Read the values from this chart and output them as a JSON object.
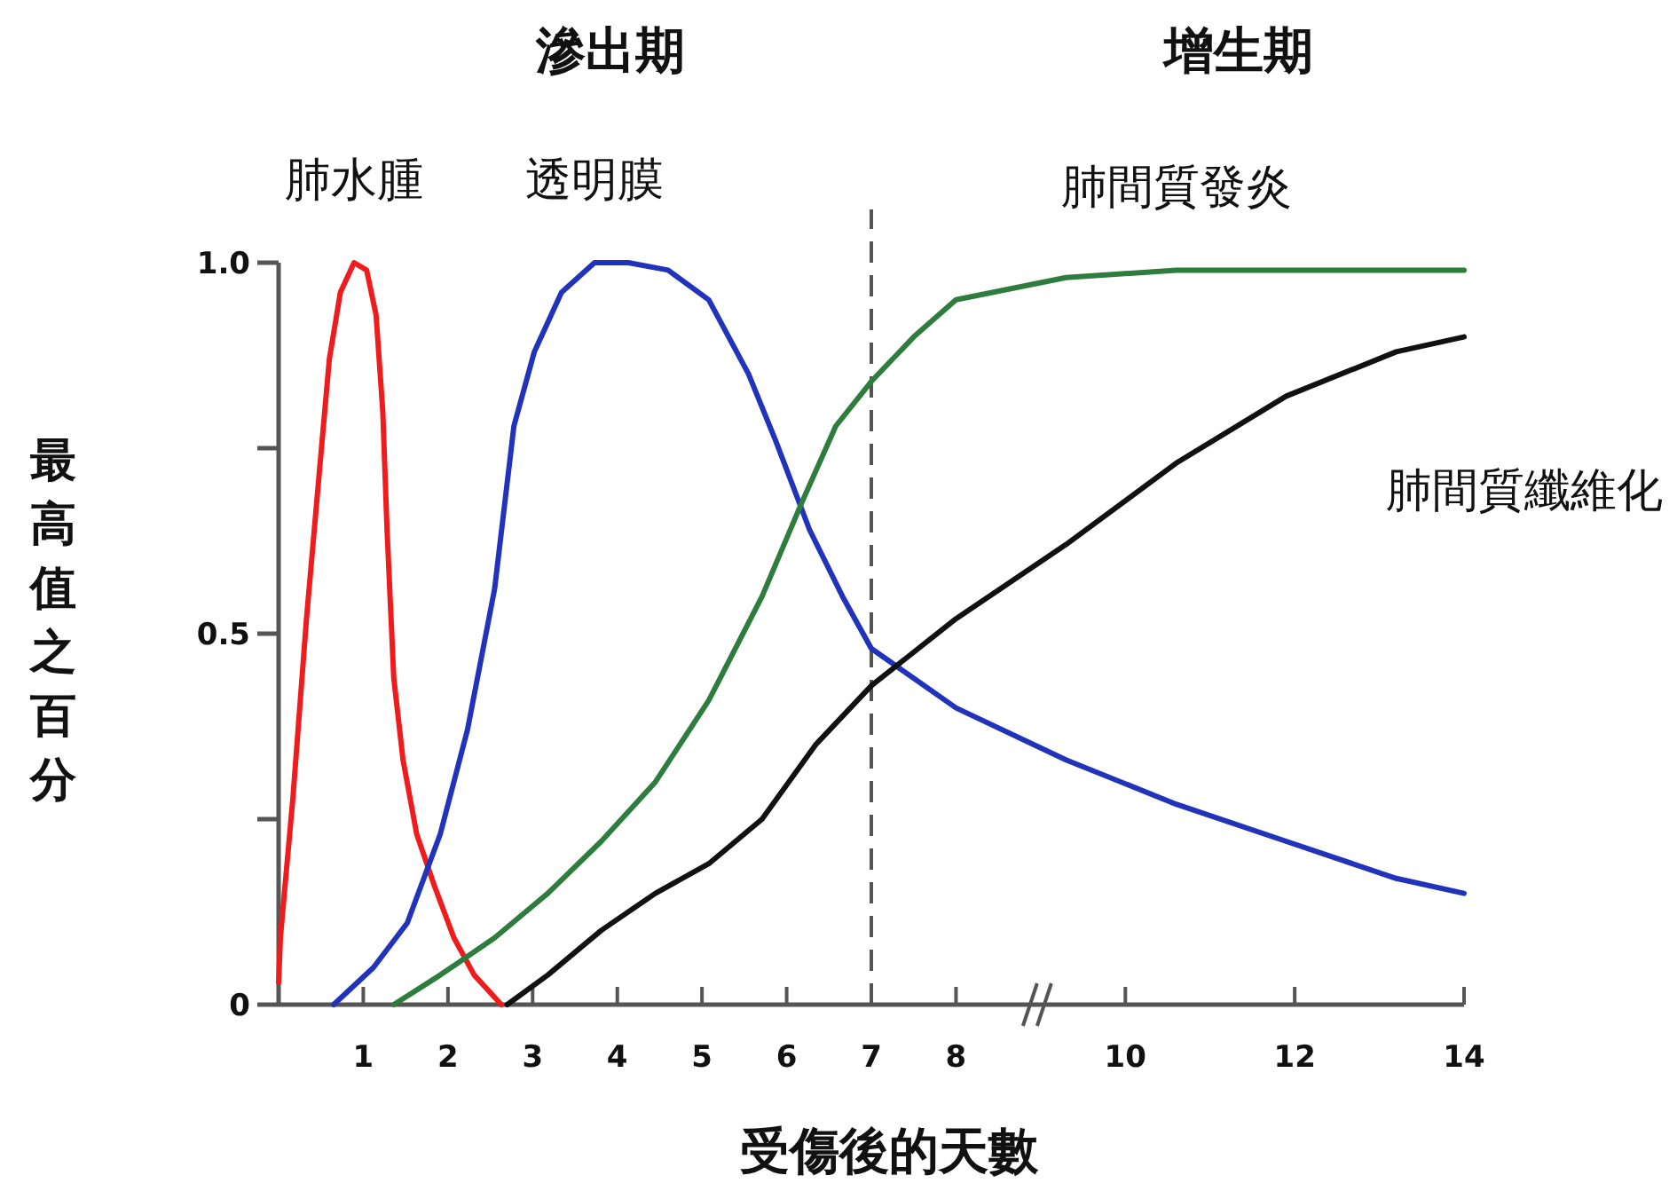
{
  "chart_data": {
    "type": "line",
    "xlabel": "受傷後的天數",
    "ylabel": "最高值之百分",
    "annotations": [
      "滲出期",
      "增生期"
    ],
    "xlim": [
      0,
      14
    ],
    "xticks": [
      1,
      2,
      3,
      4,
      5,
      6,
      7,
      8,
      10,
      12,
      14
    ],
    "ylim": [
      0,
      1
    ],
    "yticks": [
      {
        "value": 0,
        "label": "0"
      },
      {
        "value": 0.25,
        "label": null
      },
      {
        "value": 0.5,
        "label": "0.5"
      },
      {
        "value": 0.75,
        "label": null
      },
      {
        "value": 1,
        "label": "1.0"
      }
    ],
    "ref_lines": [
      {
        "axis": "x",
        "value": 7,
        "label": null,
        "color": "#555555",
        "line_style": "dashed"
      }
    ],
    "series": [
      {
        "name": "肺水腫",
        "color": "#ee1c1c",
        "x": [
          0,
          0.02,
          0.17,
          0.33,
          0.49,
          0.6,
          0.73,
          0.89,
          1.04,
          1.15,
          1.23,
          1.28,
          1.36,
          1.47,
          1.63,
          1.84,
          2.07,
          2.31,
          2.63
        ],
        "values": [
          0.03,
          0.09,
          0.28,
          0.52,
          0.73,
          0.87,
          0.96,
          1.0,
          0.99,
          0.93,
          0.8,
          0.64,
          0.44,
          0.33,
          0.23,
          0.16,
          0.09,
          0.04,
          0
        ]
      },
      {
        "name": "透明膜",
        "color": "#2233bb",
        "x": [
          0.65,
          1.12,
          1.52,
          1.91,
          2.23,
          2.55,
          2.78,
          3.02,
          3.34,
          3.73,
          4.13,
          4.6,
          5.08,
          5.55,
          5.87,
          6.27,
          6.66,
          7,
          8,
          9.3,
          10.6,
          11.9,
          13.2,
          14
        ],
        "values": [
          0,
          0.05,
          0.11,
          0.23,
          0.37,
          0.56,
          0.78,
          0.88,
          0.96,
          1.0,
          1.0,
          0.99,
          0.95,
          0.85,
          0.76,
          0.64,
          0.55,
          0.48,
          0.4,
          0.33,
          0.27,
          0.22,
          0.17,
          0.15
        ]
      },
      {
        "name": "肺間質發炎",
        "color": "#2e7d3e",
        "x": [
          1.36,
          1.91,
          2.55,
          3.18,
          3.81,
          4.45,
          5.08,
          5.71,
          6.19,
          6.58,
          7,
          7.5,
          8,
          9.3,
          10.6,
          12.5,
          14
        ],
        "values": [
          0,
          0.04,
          0.09,
          0.15,
          0.22,
          0.3,
          0.41,
          0.55,
          0.68,
          0.78,
          0.84,
          0.9,
          0.95,
          0.98,
          0.99,
          0.99,
          0.99
        ]
      },
      {
        "name": "肺間質纖維化",
        "color": "#111111",
        "x": [
          2.7,
          3.18,
          3.81,
          4.45,
          5.08,
          5.71,
          6.34,
          7,
          8,
          9.3,
          10.6,
          11.9,
          13.2,
          14
        ],
        "values": [
          0,
          0.04,
          0.1,
          0.15,
          0.19,
          0.25,
          0.35,
          0.43,
          0.52,
          0.62,
          0.73,
          0.82,
          0.88,
          0.9
        ]
      }
    ]
  }
}
